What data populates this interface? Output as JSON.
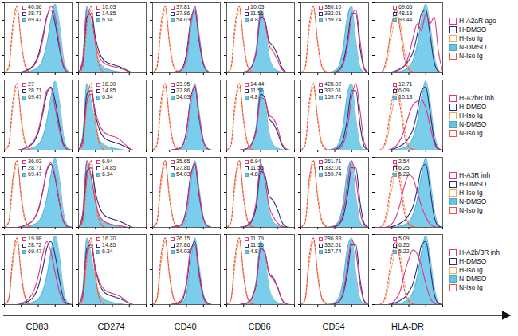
{
  "chart_data": {
    "type": "line",
    "x": [
      1,
      1.78,
      3.16,
      5.62,
      10,
      17.8,
      31.6,
      56.2,
      100,
      178,
      316,
      562,
      1000,
      1780,
      3160,
      5620,
      10000
    ],
    "xlim": [
      1,
      10000
    ],
    "xticks": [
      1,
      10,
      100,
      1000,
      10000
    ],
    "ylim": [
      0,
      100
    ],
    "yticks": [
      0,
      25,
      50,
      75,
      100
    ],
    "log": "x",
    "tick_labels": false,
    "legend": "right",
    "reference_series": [
      {
        "name": "H-DMSO",
        "color": "#26307a",
        "line_style": "solid"
      },
      {
        "name": "H-Iso Ig",
        "color": "#f2a65a",
        "line_style": "dashed"
      },
      {
        "name": "N-DMSO",
        "color": "#63c6e8",
        "line_style": "filled"
      },
      {
        "name": "N-Iso Ig",
        "color": "#e9534a",
        "line_style": "dashed"
      }
    ],
    "columns": [
      {
        "label": "CD83",
        "series_values": [
          [
            0,
            0,
            0,
            0,
            1,
            3,
            6,
            12,
            25,
            50,
            80,
            90,
            70,
            35,
            8,
            1,
            0
          ],
          [
            0,
            6,
            60,
            90,
            45,
            10,
            2,
            0,
            0,
            0,
            0,
            0,
            0,
            0,
            0,
            0,
            0
          ],
          [
            0,
            0,
            0,
            0,
            0,
            1,
            2,
            4,
            8,
            18,
            40,
            75,
            98,
            70,
            20,
            3,
            0
          ],
          [
            0,
            8,
            70,
            95,
            40,
            8,
            1,
            0,
            0,
            0,
            0,
            0,
            0,
            0,
            0,
            0,
            0
          ]
        ]
      },
      {
        "label": "CD274",
        "series_values": [
          [
            0,
            15,
            80,
            85,
            50,
            28,
            18,
            14,
            12,
            10,
            8,
            5,
            2,
            0,
            0,
            0,
            0
          ],
          [
            0,
            6,
            60,
            90,
            45,
            10,
            2,
            0,
            0,
            0,
            0,
            0,
            0,
            0,
            0,
            0,
            0
          ],
          [
            0,
            20,
            95,
            70,
            35,
            15,
            8,
            5,
            3,
            2,
            1,
            0,
            0,
            0,
            0,
            0,
            0
          ],
          [
            0,
            8,
            70,
            95,
            40,
            8,
            1,
            0,
            0,
            0,
            0,
            0,
            0,
            0,
            0,
            0,
            0
          ]
        ]
      },
      {
        "label": "CD40",
        "series_values": [
          [
            0,
            0,
            0,
            0,
            0,
            1,
            2,
            6,
            28,
            75,
            90,
            45,
            12,
            2,
            0,
            0,
            0
          ],
          [
            0,
            6,
            60,
            90,
            45,
            10,
            2,
            0,
            0,
            0,
            0,
            0,
            0,
            0,
            0,
            0,
            0
          ],
          [
            0,
            0,
            0,
            0,
            0,
            0,
            1,
            3,
            15,
            60,
            95,
            55,
            15,
            3,
            0,
            0,
            0
          ],
          [
            0,
            8,
            70,
            95,
            40,
            8,
            1,
            0,
            0,
            0,
            0,
            0,
            0,
            0,
            0,
            0,
            0
          ]
        ]
      },
      {
        "label": "CD86",
        "series_values": [
          [
            0,
            0,
            0,
            0,
            1,
            3,
            10,
            30,
            80,
            75,
            45,
            38,
            25,
            8,
            1,
            0,
            0
          ],
          [
            0,
            6,
            60,
            90,
            45,
            10,
            2,
            0,
            0,
            0,
            0,
            0,
            0,
            0,
            0,
            0,
            0
          ],
          [
            0,
            0,
            0,
            0,
            1,
            3,
            10,
            35,
            90,
            70,
            25,
            8,
            3,
            1,
            0,
            0,
            0
          ],
          [
            0,
            8,
            70,
            95,
            40,
            8,
            1,
            0,
            0,
            0,
            0,
            0,
            0,
            0,
            0,
            0,
            0
          ]
        ]
      },
      {
        "label": "CD54",
        "series_values": [
          [
            0,
            0,
            0,
            0,
            0,
            0,
            0,
            0,
            1,
            4,
            15,
            45,
            85,
            85,
            35,
            5,
            0
          ],
          [
            0,
            6,
            60,
            90,
            45,
            10,
            2,
            0,
            0,
            0,
            0,
            0,
            0,
            0,
            0,
            0,
            0
          ],
          [
            0,
            0,
            0,
            0,
            0,
            0,
            0,
            1,
            3,
            10,
            35,
            80,
            95,
            45,
            8,
            1,
            0
          ],
          [
            0,
            8,
            70,
            95,
            40,
            8,
            1,
            0,
            0,
            0,
            0,
            0,
            0,
            0,
            0,
            0,
            0
          ]
        ]
      },
      {
        "label": "HLA-DR",
        "series_values": [
          [
            0,
            0,
            0,
            0,
            1,
            3,
            6,
            10,
            18,
            30,
            55,
            85,
            90,
            55,
            15,
            2,
            0
          ],
          [
            0,
            0,
            3,
            20,
            55,
            80,
            70,
            30,
            8,
            2,
            0,
            0,
            0,
            0,
            0,
            0,
            0
          ],
          [
            0,
            0,
            0,
            0,
            0,
            1,
            2,
            4,
            8,
            18,
            40,
            75,
            98,
            70,
            25,
            4,
            0
          ],
          [
            0,
            0,
            5,
            30,
            70,
            90,
            60,
            20,
            5,
            1,
            0,
            0,
            0,
            0,
            0,
            0,
            0
          ]
        ]
      }
    ],
    "rows": [
      {
        "name": "H-A2aR ago",
        "color": "#e2337f",
        "line_style": "solid",
        "values": [
          [
            0,
            0,
            0,
            0,
            1,
            2,
            5,
            10,
            22,
            45,
            78,
            95,
            80,
            40,
            10,
            1,
            0
          ],
          [
            0,
            18,
            90,
            80,
            42,
            22,
            14,
            11,
            9,
            8,
            6,
            4,
            1,
            0,
            0,
            0,
            0
          ],
          [
            0,
            0,
            0,
            0,
            0,
            1,
            2,
            5,
            22,
            70,
            95,
            50,
            14,
            2,
            0,
            0,
            0
          ],
          [
            0,
            0,
            0,
            0,
            1,
            3,
            10,
            32,
            85,
            72,
            40,
            30,
            18,
            5,
            1,
            0,
            0
          ],
          [
            0,
            0,
            0,
            0,
            0,
            0,
            0,
            0,
            1,
            3,
            12,
            38,
            80,
            90,
            45,
            7,
            0
          ],
          [
            0,
            0,
            0,
            0,
            0,
            2,
            5,
            10,
            25,
            50,
            70,
            60,
            85,
            70,
            80,
            30,
            2
          ]
        ],
        "printed": [
          [
            40.56,
            28.71,
            69.47
          ],
          [
            10.03,
            14.85,
            6.34
          ],
          [
            37.81,
            27.86,
            54.03
          ],
          [
            10.03,
            11.56,
            4.8
          ],
          [
            380.1,
            332.01,
            159.74
          ],
          [
            69.66,
            48.13,
            93.44
          ]
        ],
        "printed_labels": [
          [
            "40.56",
            "28.71",
            "69.47"
          ],
          [
            "10.03",
            "14.85",
            "6.34"
          ],
          [
            "37.81",
            "27.86",
            "54.03"
          ],
          [
            "10.03",
            "11.56",
            "4.8"
          ],
          [
            "380.10",
            "332.01",
            "159.74"
          ],
          [
            "69.66",
            "48.13",
            "93.44"
          ]
        ]
      },
      {
        "name": "H-A2bR inh",
        "color": "#e2337f",
        "line_style": "solid",
        "values": [
          [
            0,
            0,
            0,
            0,
            1,
            3,
            7,
            14,
            28,
            55,
            85,
            88,
            60,
            28,
            6,
            1,
            0
          ],
          [
            0,
            12,
            70,
            80,
            55,
            35,
            26,
            22,
            20,
            18,
            14,
            8,
            3,
            0,
            0,
            0,
            0
          ],
          [
            0,
            0,
            0,
            0,
            0,
            1,
            2,
            5,
            25,
            72,
            92,
            48,
            13,
            2,
            0,
            0,
            0
          ],
          [
            0,
            0,
            0,
            0,
            1,
            3,
            9,
            28,
            75,
            72,
            50,
            45,
            32,
            10,
            2,
            0,
            0
          ],
          [
            0,
            0,
            0,
            0,
            0,
            0,
            0,
            0,
            1,
            2,
            9,
            32,
            75,
            95,
            55,
            10,
            0
          ],
          [
            0,
            0,
            0,
            0,
            2,
            6,
            15,
            30,
            50,
            65,
            70,
            72,
            60,
            35,
            10,
            1,
            0
          ]
        ],
        "printed": [
          [
            27,
            28.71,
            69.47
          ],
          [
            18.3,
            14.85,
            6.34
          ],
          [
            33.95,
            27.86,
            54.03
          ],
          [
            14.44,
            11.56,
            4.8
          ],
          [
            428.02,
            332.01,
            159.74
          ],
          [
            12.71,
            6.09,
            10.13
          ]
        ],
        "printed_labels": [
          [
            "27",
            "28.71",
            "69.47"
          ],
          [
            "18.30",
            "14.85",
            "6.34"
          ],
          [
            "33.95",
            "27.86",
            "54.03"
          ],
          [
            "14.44",
            "11.56",
            "4.8"
          ],
          [
            "428.02",
            "332.01",
            "159.74"
          ],
          [
            "12.71",
            "6.09",
            "10.13"
          ]
        ]
      },
      {
        "name": "H-A3R inh",
        "color": "#e2337f",
        "line_style": "solid",
        "values": [
          [
            0,
            0,
            0,
            0,
            1,
            3,
            6,
            12,
            24,
            48,
            82,
            92,
            72,
            35,
            8,
            1,
            0
          ],
          [
            0,
            20,
            95,
            72,
            36,
            16,
            9,
            6,
            4,
            3,
            2,
            1,
            0,
            0,
            0,
            0,
            0
          ],
          [
            0,
            0,
            0,
            0,
            0,
            1,
            2,
            5,
            24,
            72,
            93,
            49,
            13,
            2,
            0,
            0,
            0
          ],
          [
            0,
            0,
            0,
            0,
            1,
            4,
            12,
            38,
            92,
            68,
            30,
            15,
            6,
            2,
            0,
            0,
            0
          ],
          [
            0,
            0,
            0,
            0,
            0,
            0,
            0,
            0,
            2,
            6,
            22,
            60,
            95,
            70,
            22,
            3,
            0
          ],
          [
            0,
            0,
            0,
            1,
            5,
            15,
            35,
            60,
            75,
            70,
            50,
            30,
            15,
            5,
            1,
            0,
            0
          ]
        ],
        "printed": [
          [
            36.03,
            28.71,
            69.47
          ],
          [
            6.94,
            14.85,
            6.34
          ],
          [
            35.65,
            27.86,
            54.03
          ],
          [
            6.94,
            11.56,
            4.8
          ],
          [
            261.71,
            332.01,
            159.74
          ],
          [
            2.54,
            6.25,
            5.22
          ]
        ]
      },
      {
        "name": "H-A2b/3R inh",
        "color": "#e2337f",
        "line_style": "solid",
        "values": [
          [
            0,
            0,
            0,
            0,
            2,
            5,
            10,
            20,
            40,
            70,
            90,
            75,
            45,
            18,
            4,
            0,
            0
          ],
          [
            0,
            14,
            75,
            82,
            52,
            32,
            22,
            18,
            16,
            14,
            11,
            6,
            2,
            0,
            0,
            0,
            0
          ],
          [
            0,
            0,
            0,
            0,
            0,
            1,
            3,
            8,
            32,
            80,
            85,
            40,
            10,
            1,
            0,
            0,
            0
          ],
          [
            0,
            0,
            0,
            0,
            1,
            3,
            10,
            30,
            80,
            74,
            44,
            36,
            24,
            7,
            1,
            0,
            0
          ],
          [
            0,
            0,
            0,
            0,
            0,
            0,
            0,
            0,
            2,
            5,
            18,
            55,
            92,
            75,
            28,
            4,
            0
          ],
          [
            0,
            0,
            0,
            0,
            2,
            8,
            20,
            45,
            65,
            78,
            72,
            55,
            30,
            10,
            2,
            0,
            0
          ]
        ],
        "printed": [
          [
            19.98,
            28.72,
            69.47
          ],
          [
            16.7,
            14.85,
            6.34
          ],
          [
            26.15,
            27.86,
            54.03
          ],
          [
            11.79,
            11.56,
            4.8
          ],
          [
            286.83,
            332.01,
            157.74
          ],
          [
            5.09,
            6.25,
            5.22
          ]
        ],
        "printed_labels": [
          [
            "19.98",
            "28.72",
            "69.47"
          ],
          [
            "16.70",
            "14.85",
            "6.34"
          ],
          [
            "26.15",
            "27.86",
            "54.03"
          ],
          [
            "11.79",
            "11.56",
            "4.8"
          ],
          [
            "286.83",
            "332.01",
            "157.74"
          ],
          [
            "5.09",
            "6.25",
            "5.22"
          ]
        ]
      }
    ]
  }
}
